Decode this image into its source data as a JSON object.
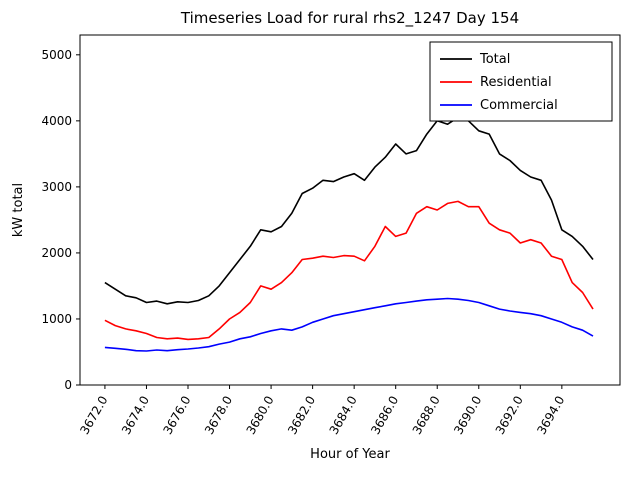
{
  "chart_data": {
    "type": "line",
    "title": "Timeseries Load for rural rhs2_1247  Day 154",
    "xlabel": "Hour of Year",
    "ylabel": "kW total",
    "xlim": [
      3670.8,
      3696.8
    ],
    "ylim": [
      0,
      5300
    ],
    "grid": false,
    "legend_position": "upper right",
    "x": [
      3672.0,
      3672.5,
      3673.0,
      3673.5,
      3674.0,
      3674.5,
      3675.0,
      3675.5,
      3676.0,
      3676.5,
      3677.0,
      3677.5,
      3678.0,
      3678.5,
      3679.0,
      3679.5,
      3680.0,
      3680.5,
      3681.0,
      3681.5,
      3682.0,
      3682.5,
      3683.0,
      3683.5,
      3684.0,
      3684.5,
      3685.0,
      3685.5,
      3686.0,
      3686.5,
      3687.0,
      3687.5,
      3688.0,
      3688.5,
      3689.0,
      3689.5,
      3690.0,
      3690.5,
      3691.0,
      3691.5,
      3692.0,
      3692.5,
      3693.0,
      3693.5,
      3694.0,
      3694.5,
      3695.0,
      3695.5
    ],
    "series": [
      {
        "name": "Total",
        "color": "#000000",
        "values": [
          1550,
          1450,
          1350,
          1320,
          1250,
          1270,
          1230,
          1260,
          1250,
          1280,
          1350,
          1500,
          1700,
          1900,
          2100,
          2350,
          2320,
          2400,
          2600,
          2900,
          2980,
          3100,
          3080,
          3150,
          3200,
          3100,
          3300,
          3450,
          3650,
          3500,
          3550,
          3800,
          4000,
          3950,
          4050,
          4000,
          3850,
          3800,
          3500,
          3400,
          3250,
          3150,
          3100,
          2800,
          2350,
          2250,
          2100,
          1900
        ]
      },
      {
        "name": "Residential",
        "color": "#ff0000",
        "values": [
          980,
          900,
          850,
          820,
          780,
          720,
          700,
          710,
          690,
          700,
          720,
          850,
          1000,
          1100,
          1250,
          1500,
          1450,
          1550,
          1700,
          1900,
          1920,
          1950,
          1930,
          1960,
          1950,
          1880,
          2100,
          2400,
          2250,
          2300,
          2600,
          2700,
          2650,
          2750,
          2780,
          2700,
          2700,
          2450,
          2350,
          2300,
          2150,
          2200,
          2150,
          1950,
          1900,
          1550,
          1400,
          1150
        ]
      },
      {
        "name": "Commercial",
        "color": "#0000ff",
        "values": [
          570,
          555,
          540,
          520,
          515,
          530,
          520,
          535,
          545,
          560,
          580,
          620,
          650,
          700,
          730,
          780,
          820,
          850,
          830,
          880,
          950,
          1000,
          1050,
          1080,
          1110,
          1140,
          1170,
          1200,
          1230,
          1250,
          1270,
          1290,
          1300,
          1310,
          1300,
          1280,
          1250,
          1200,
          1150,
          1120,
          1100,
          1080,
          1050,
          1000,
          950,
          880,
          830,
          740
        ]
      }
    ],
    "x_ticks": [
      {
        "value": 3672,
        "label": "3672.0"
      },
      {
        "value": 3674,
        "label": "3674.0"
      },
      {
        "value": 3676,
        "label": "3676.0"
      },
      {
        "value": 3678,
        "label": "3678.0"
      },
      {
        "value": 3680,
        "label": "3680.0"
      },
      {
        "value": 3682,
        "label": "3682.0"
      },
      {
        "value": 3684,
        "label": "3684.0"
      },
      {
        "value": 3686,
        "label": "3686.0"
      },
      {
        "value": 3688,
        "label": "3688.0"
      },
      {
        "value": 3690,
        "label": "3690.0"
      },
      {
        "value": 3692,
        "label": "3692.0"
      },
      {
        "value": 3694,
        "label": "3694.0"
      }
    ],
    "y_ticks": [
      {
        "value": 0,
        "label": "0"
      },
      {
        "value": 1000,
        "label": "1000"
      },
      {
        "value": 2000,
        "label": "2000"
      },
      {
        "value": 3000,
        "label": "3000"
      },
      {
        "value": 4000,
        "label": "4000"
      },
      {
        "value": 5000,
        "label": "5000"
      }
    ]
  }
}
